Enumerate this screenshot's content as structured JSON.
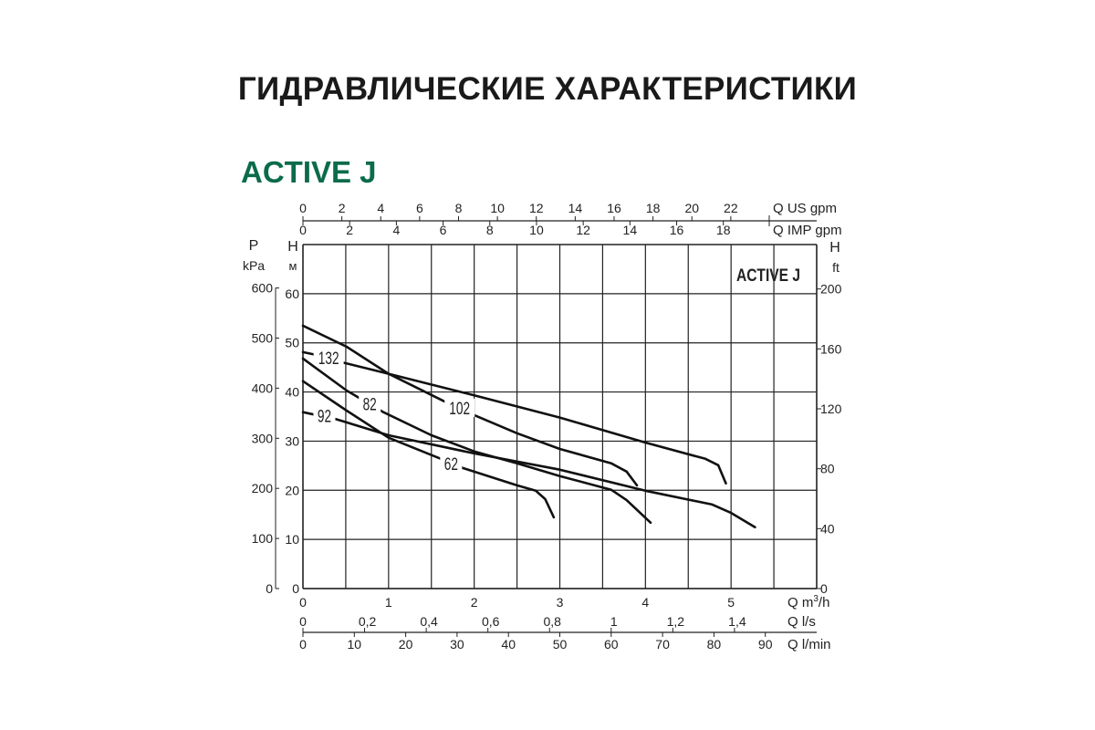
{
  "page": {
    "title": "ГИДРАВЛИЧЕСКИЕ ХАРАКТЕРИСТИКИ",
    "subtitle": "ACTIVE J"
  },
  "chart_data": {
    "type": "line",
    "title": "ACTIVE J",
    "grid": true,
    "x_axes": {
      "primary": {
        "label": "Q m³/h",
        "label_main": "Q m",
        "label_sup": "3",
        "label_tail": "/h",
        "range": [
          0,
          6
        ],
        "ticks": [
          "0",
          "1",
          "2",
          "3",
          "4",
          "5"
        ]
      },
      "ls": {
        "label": "Q l/s",
        "ticks": [
          "0",
          "0,2",
          "0,4",
          "0,6",
          "0,8",
          "1",
          "1,2",
          "1,4"
        ]
      },
      "lmin": {
        "label": "Q l/min",
        "ticks": [
          "0",
          "10",
          "20",
          "30",
          "40",
          "50",
          "60",
          "70",
          "80",
          "90"
        ]
      },
      "us_gpm": {
        "label": "Q US gpm",
        "ticks": [
          "0",
          "2",
          "4",
          "6",
          "8",
          "10",
          "12",
          "14",
          "16",
          "18",
          "20",
          "22"
        ]
      },
      "imp_gpm": {
        "label": "Q IMP gpm",
        "ticks": [
          "0",
          "2",
          "4",
          "6",
          "8",
          "10",
          "12",
          "14",
          "16",
          "18"
        ]
      }
    },
    "y_axes": {
      "primary": {
        "label_top": "H",
        "label_unit": "м",
        "range": [
          0,
          70
        ],
        "ticks": [
          "0",
          "10",
          "20",
          "30",
          "40",
          "50",
          "60"
        ]
      },
      "kpa": {
        "label_top": "P",
        "label_unit": "kPa",
        "ticks": [
          "0",
          "100",
          "200",
          "300",
          "400",
          "500",
          "600"
        ]
      },
      "ft": {
        "label_top": "H",
        "label_unit": "ft",
        "ticks": [
          "0",
          "40",
          "80",
          "120",
          "160",
          "200"
        ]
      }
    },
    "series": [
      {
        "name": "132",
        "x": [
          0,
          0.14,
          0.44,
          1.0,
          1.98,
          3.0,
          4.0,
          4.7,
          4.85,
          4.94
        ],
        "y": [
          48.1,
          47.6,
          46.1,
          43.7,
          39.4,
          34.8,
          29.7,
          26.4,
          25.1,
          21.4
        ]
      },
      {
        "name": "102",
        "x": [
          0,
          0.51,
          1.0,
          1.65,
          2.0,
          2.5,
          3.0,
          3.6,
          3.78,
          3.9
        ],
        "y": [
          53.5,
          49.2,
          43.7,
          38.1,
          35.3,
          31.6,
          28.4,
          25.5,
          23.8,
          21.0
        ]
      },
      {
        "name": "82",
        "x": [
          0,
          0.51,
          0.94,
          1.5,
          2.0,
          2.5,
          3.0,
          3.6,
          3.78,
          4.06
        ],
        "y": [
          46.8,
          40.3,
          35.9,
          31.2,
          27.9,
          25.5,
          22.9,
          20.1,
          18.0,
          13.4
        ]
      },
      {
        "name": "92",
        "x": [
          0,
          0.4,
          1.0,
          2.0,
          3.0,
          4.0,
          4.78,
          5.0,
          5.28
        ],
        "y": [
          35.9,
          34.4,
          31.2,
          27.5,
          24.2,
          19.9,
          17.1,
          15.4,
          12.5
        ]
      },
      {
        "name": "62",
        "x": [
          0,
          0.51,
          1.0,
          1.61,
          1.87,
          2.5,
          2.72,
          2.83,
          2.93
        ],
        "y": [
          42.2,
          36.2,
          30.7,
          26.4,
          24.5,
          21.0,
          19.9,
          18.2,
          14.5
        ]
      }
    ]
  }
}
